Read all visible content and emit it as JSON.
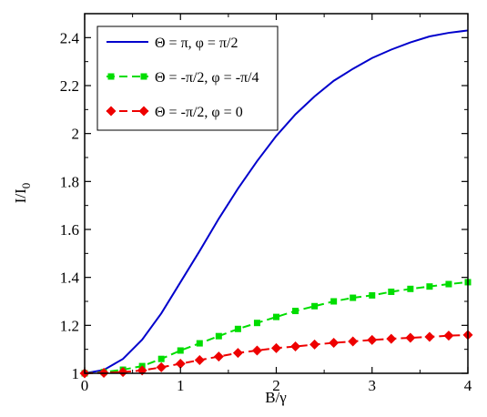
{
  "chart_data": {
    "type": "line",
    "title": "",
    "xlabel": "B/γ",
    "ylabel_main": "I/I",
    "ylabel_sub": "0",
    "xlim": [
      0,
      4
    ],
    "ylim": [
      1,
      2.5
    ],
    "xticks": [
      0,
      1,
      2,
      3,
      4
    ],
    "xtick_labels": [
      "0",
      "1",
      "2",
      "3",
      "4"
    ],
    "yticks": [
      1,
      1.2,
      1.4,
      1.6,
      1.8,
      2,
      2.2,
      2.4
    ],
    "ytick_labels": [
      "1",
      "1.2",
      "1.4",
      "1.6",
      "1.8",
      "2",
      "2.2",
      "2.4"
    ],
    "grid": false,
    "legend_position": "top-left",
    "series": [
      {
        "name": "Θ = π, φ = π/2",
        "color": "#0000cc",
        "style": "solid",
        "marker": "none",
        "x": [
          0,
          0.2,
          0.4,
          0.6,
          0.8,
          1.0,
          1.2,
          1.4,
          1.6,
          1.8,
          2.0,
          2.2,
          2.4,
          2.6,
          2.8,
          3.0,
          3.2,
          3.4,
          3.6,
          3.8,
          4.0
        ],
        "y": [
          1.0,
          1.014,
          1.06,
          1.14,
          1.25,
          1.38,
          1.51,
          1.645,
          1.77,
          1.885,
          1.99,
          2.08,
          2.155,
          2.22,
          2.27,
          2.315,
          2.35,
          2.38,
          2.405,
          2.42,
          2.43
        ]
      },
      {
        "name": "Θ = -π/2, φ = -π/4",
        "color": "#00dd00",
        "style": "dashed",
        "marker": "square",
        "x": [
          0,
          0.2,
          0.4,
          0.6,
          0.8,
          1.0,
          1.2,
          1.4,
          1.6,
          1.8,
          2.0,
          2.2,
          2.4,
          2.6,
          2.8,
          3.0,
          3.2,
          3.4,
          3.6,
          3.8,
          4.0
        ],
        "y": [
          1.0,
          1.005,
          1.015,
          1.03,
          1.06,
          1.095,
          1.125,
          1.155,
          1.185,
          1.21,
          1.235,
          1.26,
          1.28,
          1.3,
          1.315,
          1.325,
          1.34,
          1.352,
          1.362,
          1.372,
          1.38
        ]
      },
      {
        "name": "Θ = -π/2, φ = 0",
        "color": "#ee0000",
        "style": "dashed",
        "marker": "diamond",
        "x": [
          0,
          0.2,
          0.4,
          0.6,
          0.8,
          1.0,
          1.2,
          1.4,
          1.6,
          1.8,
          2.0,
          2.2,
          2.4,
          2.6,
          2.8,
          3.0,
          3.2,
          3.4,
          3.6,
          3.8,
          4.0
        ],
        "y": [
          1.0,
          1.002,
          1.005,
          1.012,
          1.025,
          1.04,
          1.055,
          1.07,
          1.085,
          1.095,
          1.105,
          1.112,
          1.12,
          1.127,
          1.133,
          1.139,
          1.144,
          1.148,
          1.152,
          1.157,
          1.16
        ]
      }
    ]
  }
}
